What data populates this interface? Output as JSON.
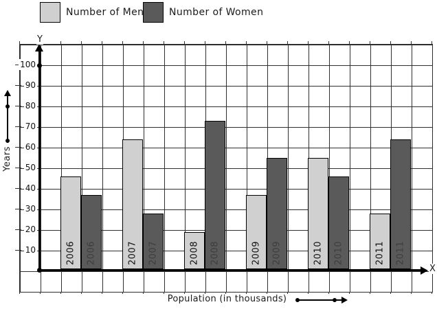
{
  "legend": {
    "items": [
      {
        "label": "Number of Men",
        "color": "#d0d0d0"
      },
      {
        "label": "Number of Women",
        "color": "#5a5a5a"
      }
    ]
  },
  "axes": {
    "y_arrow_label": "Y",
    "x_arrow_label": "X",
    "y_axis_title": "Years",
    "x_axis_title": "Population (in thousands)",
    "y_ticks": [
      100,
      90,
      80,
      70,
      60,
      50,
      40,
      30,
      20,
      10
    ]
  },
  "chart_data": {
    "type": "bar",
    "categories": [
      "2006",
      "2007",
      "2008",
      "2009",
      "2010",
      "2011"
    ],
    "series": [
      {
        "name": "Number of Men",
        "color": "#d0d0d0",
        "values": [
          45,
          63,
          18,
          36,
          54,
          27
        ]
      },
      {
        "name": "Number of Women",
        "color": "#5a5a5a",
        "values": [
          36,
          27,
          72,
          54,
          45,
          63
        ]
      }
    ],
    "title": "",
    "xlabel": "Population (in thousands)",
    "ylabel": "Years",
    "ylim": [
      0,
      110
    ],
    "y_tick_step": 10,
    "grid": true,
    "legend_position": "top-left",
    "notes": "category year labels drawn rotated 90deg inside bottom of each bar; one empty grid column between year groups"
  }
}
